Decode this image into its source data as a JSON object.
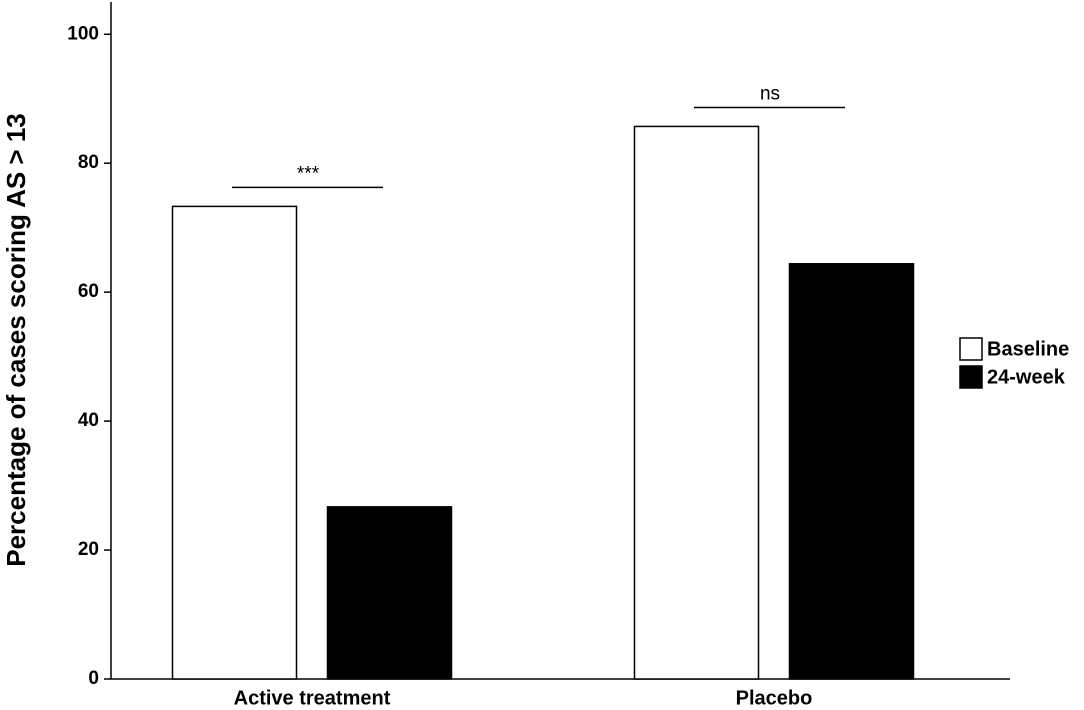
{
  "chart_data": {
    "type": "bar",
    "y_label": "Percentage of cases scoring AS > 13",
    "categories": [
      "Active treatment",
      "Placebo"
    ],
    "series": [
      {
        "name": "Baseline",
        "color": "#ffffff",
        "values": [
          73.3,
          85.7
        ]
      },
      {
        "name": "24-week",
        "color": "#000000",
        "values": [
          26.7,
          64.4
        ]
      }
    ],
    "annotations": [
      "***",
      "ns"
    ],
    "ylim": [
      0,
      105
    ],
    "yticks": [
      0,
      20,
      40,
      60,
      80,
      100
    ],
    "grid": false,
    "legend": "right"
  }
}
